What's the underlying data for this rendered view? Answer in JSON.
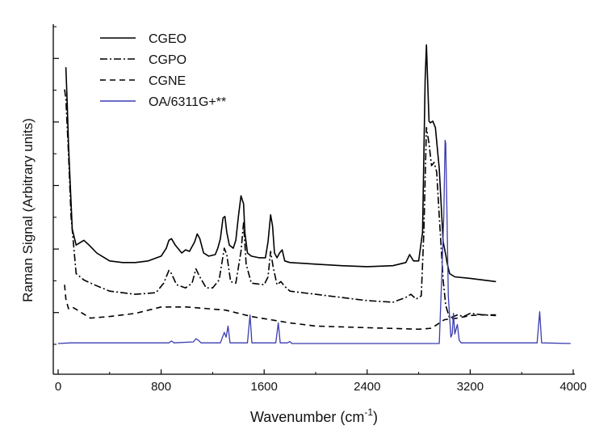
{
  "chart_data": {
    "type": "line",
    "title": "",
    "xlabel": "Wavenumber (cm",
    "xlabel_sup": "-1",
    "xlabel_tail": ")",
    "ylabel": "Raman Signal (Arbitrary units)",
    "xlim": [
      -50,
      4000
    ],
    "ylim": [
      -0.5,
      10.2
    ],
    "x_ticks": [
      0,
      800,
      1600,
      2400,
      3200,
      4000
    ],
    "x_tick_labels": [
      "0",
      "800",
      "1600",
      "2400",
      "3200",
      "4000"
    ],
    "y_ticks_major": [
      1,
      3,
      5,
      7,
      9
    ],
    "y_ticks_minor": [
      0,
      2,
      4,
      6,
      8,
      10
    ],
    "show_y_tick_labels": false,
    "grid": false,
    "legend_position": "top-left",
    "legend": [
      {
        "name": "CGEO",
        "style": "solid",
        "color": "#000000"
      },
      {
        "name": "CGPO",
        "style": "dashdot",
        "color": "#000000"
      },
      {
        "name": "CGNE",
        "style": "dashed",
        "color": "#000000"
      },
      {
        "name": "OA/6311G+**",
        "style": "solid",
        "color": "#3b3bb0"
      }
    ],
    "series": [
      {
        "name": "CGEO",
        "style": "solid",
        "color": "#000000",
        "points": [
          [
            60,
            8.7
          ],
          [
            70,
            7.6
          ],
          [
            80,
            6.3
          ],
          [
            95,
            4.9
          ],
          [
            110,
            3.6
          ],
          [
            140,
            3.1
          ],
          [
            200,
            3.25
          ],
          [
            240,
            3.1
          ],
          [
            300,
            2.85
          ],
          [
            400,
            2.6
          ],
          [
            500,
            2.55
          ],
          [
            600,
            2.55
          ],
          [
            700,
            2.6
          ],
          [
            800,
            2.75
          ],
          [
            840,
            3.0
          ],
          [
            860,
            3.25
          ],
          [
            880,
            3.3
          ],
          [
            910,
            3.1
          ],
          [
            960,
            2.85
          ],
          [
            990,
            2.95
          ],
          [
            1020,
            2.9
          ],
          [
            1060,
            3.2
          ],
          [
            1080,
            3.45
          ],
          [
            1100,
            3.3
          ],
          [
            1130,
            2.85
          ],
          [
            1170,
            2.75
          ],
          [
            1220,
            2.8
          ],
          [
            1240,
            3.0
          ],
          [
            1260,
            3.3
          ],
          [
            1280,
            3.95
          ],
          [
            1295,
            4.0
          ],
          [
            1310,
            3.5
          ],
          [
            1330,
            3.1
          ],
          [
            1360,
            3.0
          ],
          [
            1380,
            3.25
          ],
          [
            1400,
            4.0
          ],
          [
            1420,
            4.65
          ],
          [
            1440,
            4.4
          ],
          [
            1450,
            3.5
          ],
          [
            1470,
            2.85
          ],
          [
            1500,
            2.75
          ],
          [
            1560,
            2.7
          ],
          [
            1610,
            2.7
          ],
          [
            1630,
            3.2
          ],
          [
            1650,
            4.05
          ],
          [
            1665,
            3.7
          ],
          [
            1680,
            2.85
          ],
          [
            1700,
            2.7
          ],
          [
            1720,
            2.85
          ],
          [
            1740,
            2.95
          ],
          [
            1760,
            2.6
          ],
          [
            1800,
            2.55
          ],
          [
            2000,
            2.5
          ],
          [
            2200,
            2.45
          ],
          [
            2400,
            2.42
          ],
          [
            2600,
            2.45
          ],
          [
            2700,
            2.55
          ],
          [
            2730,
            2.8
          ],
          [
            2760,
            2.6
          ],
          [
            2800,
            2.6
          ],
          [
            2830,
            3.5
          ],
          [
            2850,
            8.3
          ],
          [
            2860,
            9.4
          ],
          [
            2870,
            8.2
          ],
          [
            2880,
            7.0
          ],
          [
            2890,
            6.95
          ],
          [
            2910,
            7.0
          ],
          [
            2930,
            6.8
          ],
          [
            2960,
            5.5
          ],
          [
            2990,
            3.2
          ],
          [
            3010,
            2.8
          ],
          [
            3020,
            2.55
          ],
          [
            3040,
            2.2
          ],
          [
            3080,
            2.1
          ],
          [
            3200,
            2.05
          ],
          [
            3300,
            2.0
          ],
          [
            3400,
            1.95
          ]
        ]
      },
      {
        "name": "CGPO",
        "style": "dashdot",
        "color": "#000000",
        "points": [
          [
            50,
            8.0
          ],
          [
            60,
            7.7
          ],
          [
            80,
            6.0
          ],
          [
            100,
            4.0
          ],
          [
            140,
            2.2
          ],
          [
            200,
            2.0
          ],
          [
            280,
            1.85
          ],
          [
            400,
            1.65
          ],
          [
            600,
            1.55
          ],
          [
            760,
            1.6
          ],
          [
            820,
            1.9
          ],
          [
            860,
            2.3
          ],
          [
            880,
            2.2
          ],
          [
            920,
            1.85
          ],
          [
            990,
            1.75
          ],
          [
            1040,
            1.9
          ],
          [
            1070,
            2.35
          ],
          [
            1100,
            2.1
          ],
          [
            1150,
            1.75
          ],
          [
            1200,
            1.75
          ],
          [
            1250,
            2.0
          ],
          [
            1290,
            3.0
          ],
          [
            1310,
            2.8
          ],
          [
            1340,
            1.95
          ],
          [
            1380,
            1.9
          ],
          [
            1420,
            2.9
          ],
          [
            1440,
            3.8
          ],
          [
            1460,
            2.5
          ],
          [
            1500,
            1.9
          ],
          [
            1600,
            1.85
          ],
          [
            1630,
            2.1
          ],
          [
            1650,
            2.9
          ],
          [
            1670,
            2.4
          ],
          [
            1700,
            1.85
          ],
          [
            1730,
            1.95
          ],
          [
            1760,
            1.8
          ],
          [
            1800,
            1.65
          ],
          [
            2000,
            1.55
          ],
          [
            2400,
            1.35
          ],
          [
            2600,
            1.3
          ],
          [
            2700,
            1.45
          ],
          [
            2740,
            1.55
          ],
          [
            2780,
            1.4
          ],
          [
            2820,
            1.5
          ],
          [
            2840,
            3.5
          ],
          [
            2860,
            6.8
          ],
          [
            2880,
            6.3
          ],
          [
            2900,
            5.6
          ],
          [
            2920,
            5.7
          ],
          [
            2940,
            5.4
          ],
          [
            2960,
            4.0
          ],
          [
            2990,
            2.0
          ],
          [
            3010,
            1.2
          ],
          [
            3040,
            0.8
          ],
          [
            3100,
            0.9
          ],
          [
            3150,
            0.85
          ],
          [
            3200,
            0.95
          ],
          [
            3300,
            0.9
          ],
          [
            3400,
            0.88
          ]
        ]
      },
      {
        "name": "CGNE",
        "style": "dashed",
        "color": "#000000",
        "points": [
          [
            50,
            1.85
          ],
          [
            60,
            1.4
          ],
          [
            80,
            1.1
          ],
          [
            110,
            1.15
          ],
          [
            150,
            1.05
          ],
          [
            250,
            0.8
          ],
          [
            400,
            0.85
          ],
          [
            600,
            0.95
          ],
          [
            800,
            1.15
          ],
          [
            860,
            1.15
          ],
          [
            1000,
            1.15
          ],
          [
            1300,
            1.05
          ],
          [
            1500,
            0.85
          ],
          [
            1800,
            0.65
          ],
          [
            2000,
            0.55
          ],
          [
            2400,
            0.5
          ],
          [
            2800,
            0.45
          ],
          [
            2900,
            0.48
          ],
          [
            3000,
            0.75
          ],
          [
            3100,
            0.8
          ],
          [
            3200,
            0.88
          ],
          [
            3300,
            0.9
          ],
          [
            3400,
            0.9
          ]
        ]
      },
      {
        "name": "OA/6311G+**",
        "style": "solid",
        "color": "#3b3bb0",
        "points": [
          [
            0,
            0.0
          ],
          [
            100,
            0.02
          ],
          [
            860,
            0.02
          ],
          [
            880,
            0.08
          ],
          [
            900,
            0.02
          ],
          [
            1050,
            0.05
          ],
          [
            1070,
            0.15
          ],
          [
            1090,
            0.1
          ],
          [
            1110,
            0.02
          ],
          [
            1260,
            0.02
          ],
          [
            1290,
            0.35
          ],
          [
            1305,
            0.2
          ],
          [
            1320,
            0.55
          ],
          [
            1335,
            0.02
          ],
          [
            1470,
            0.02
          ],
          [
            1490,
            0.9
          ],
          [
            1505,
            0.02
          ],
          [
            1690,
            0.02
          ],
          [
            1710,
            0.65
          ],
          [
            1725,
            0.02
          ],
          [
            1780,
            0.02
          ],
          [
            1800,
            0.06
          ],
          [
            1815,
            0.0
          ],
          [
            2960,
            0.0
          ],
          [
            2980,
            2.2
          ],
          [
            2995,
            4.0
          ],
          [
            3005,
            6.4
          ],
          [
            3010,
            6.3
          ],
          [
            3020,
            4.0
          ],
          [
            3030,
            1.5
          ],
          [
            3050,
            0.2
          ],
          [
            3060,
            0.3
          ],
          [
            3070,
            0.95
          ],
          [
            3080,
            0.3
          ],
          [
            3100,
            0.6
          ],
          [
            3115,
            0.1
          ],
          [
            3130,
            0.02
          ],
          [
            3720,
            0.02
          ],
          [
            3740,
            1.0
          ],
          [
            3755,
            0.02
          ],
          [
            3980,
            0.0
          ]
        ]
      }
    ]
  }
}
